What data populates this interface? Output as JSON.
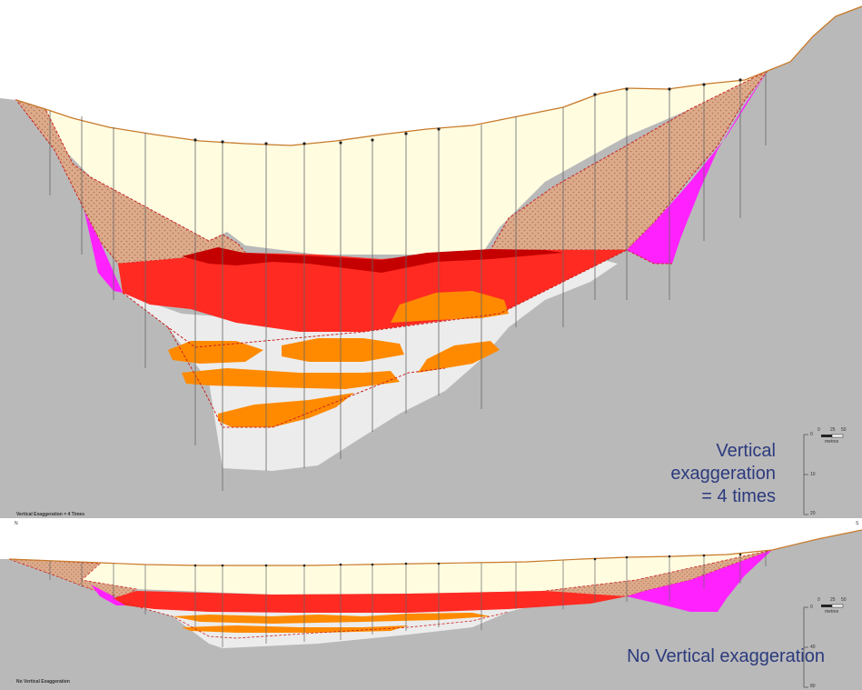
{
  "top_panel": {
    "corner_label": "Vertical Exaggeration = 4 Times",
    "caption_lines": [
      "Vertical",
      "exaggeration",
      "= 4 times"
    ],
    "left_edge_mark": "N",
    "right_edge_mark": "S",
    "scale_ticks": [
      "0",
      "25",
      "50"
    ],
    "scale_unit": "metres",
    "depth_ticks": [
      "0",
      "10",
      "20"
    ]
  },
  "bottom_panel": {
    "corner_label": "No Vertical Exaggeration",
    "caption": "No Vertical exaggeration",
    "scale_ticks": [
      "0",
      "25",
      "50"
    ],
    "scale_unit": "metres",
    "depth_ticks": [
      "0",
      "40",
      "80"
    ]
  },
  "colors": {
    "bedrock": "#b9b9b9",
    "sky": "#ffffff",
    "upper_fill": "#fffce0",
    "side_deposit": "#dcab8c",
    "magenta_unit": "#ff22ff",
    "red_unit": "#ff2a22",
    "dark_red": "#c40000",
    "orange_unit": "#ff8a00",
    "light_grey_unit": "#ececec",
    "caption_text": "#2c3a7e",
    "contact_line": "#cc2222",
    "surface_line": "#c87a2a"
  }
}
